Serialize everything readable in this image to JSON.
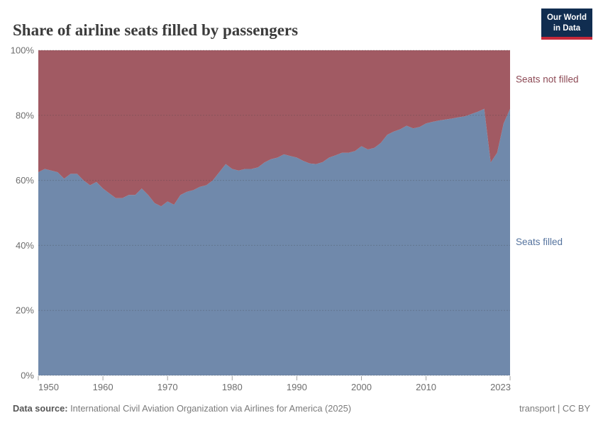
{
  "header": {
    "title": "Share of airline seats filled by passengers",
    "logo": {
      "line1": "Our World",
      "line2": "in Data"
    }
  },
  "chart_data": {
    "type": "area",
    "stacked": true,
    "percent_scale": true,
    "title": "Share of airline seats filled by passengers",
    "xlabel": "",
    "ylabel": "",
    "grid": "dashed-horizontal",
    "legend_position": "inline-right",
    "x_axis": {
      "start_year": 1950,
      "end_year": 2023,
      "tick_years": [
        1950,
        1960,
        1970,
        1980,
        1990,
        2000,
        2010,
        2023
      ],
      "tick_labels": [
        "1950",
        "1960",
        "1970",
        "1980",
        "1990",
        "2000",
        "2010",
        "2023"
      ]
    },
    "y_axis": {
      "min": 0,
      "max": 100,
      "tick_values": [
        0,
        20,
        40,
        60,
        80,
        100
      ],
      "tick_labels": [
        "0%",
        "20%",
        "40%",
        "60%",
        "80%",
        "100%"
      ]
    },
    "years": [
      1950,
      1951,
      1952,
      1953,
      1954,
      1955,
      1956,
      1957,
      1958,
      1959,
      1960,
      1961,
      1962,
      1963,
      1964,
      1965,
      1966,
      1967,
      1968,
      1969,
      1970,
      1971,
      1972,
      1973,
      1974,
      1975,
      1976,
      1977,
      1978,
      1979,
      1980,
      1981,
      1982,
      1983,
      1984,
      1985,
      1986,
      1987,
      1988,
      1989,
      1990,
      1991,
      1992,
      1993,
      1994,
      1995,
      1996,
      1997,
      1998,
      1999,
      2000,
      2001,
      2002,
      2003,
      2004,
      2005,
      2006,
      2007,
      2008,
      2009,
      2010,
      2011,
      2012,
      2013,
      2014,
      2015,
      2016,
      2017,
      2018,
      2019,
      2020,
      2021,
      2022,
      2023
    ],
    "series": [
      {
        "name": "Seats filled",
        "area_color": "#7089ab",
        "label_color": "#55739e",
        "values": [
          62.5,
          63.5,
          63,
          62.5,
          60.5,
          62,
          62,
          60,
          58.5,
          59.5,
          57.5,
          56,
          54.5,
          54.5,
          55.5,
          55.5,
          57.5,
          55.5,
          53,
          52,
          53.5,
          52.5,
          55.5,
          56.5,
          57,
          58,
          58.5,
          60,
          62.5,
          65,
          63.5,
          63,
          63.5,
          63.5,
          64,
          65.5,
          66.5,
          67,
          68,
          67.5,
          67,
          66,
          65.2,
          65,
          65.6,
          67,
          67.7,
          68.5,
          68.5,
          69,
          70.5,
          69.5,
          70,
          71.5,
          74,
          75,
          75.7,
          76.8,
          76,
          76.4,
          77.5,
          78,
          78.4,
          78.7,
          79,
          79.4,
          79.7,
          80.4,
          81.1,
          82,
          65.5,
          68.5,
          77.5,
          82
        ]
      },
      {
        "name": "Seats not filled",
        "area_color": "#a15a63",
        "label_color": "#8d4a55",
        "derived": "100 minus Seats filled"
      }
    ]
  },
  "style_tokens": {
    "grid_color": "#464646",
    "tick_mark_color": "#a3a3a3",
    "tick_text_color": "#6e6e6e"
  },
  "footer": {
    "datasource_label": "Data source:",
    "datasource_text": " International Civil Aviation Organization via Airlines for America (2025)",
    "rights_text": "transport | CC BY"
  }
}
